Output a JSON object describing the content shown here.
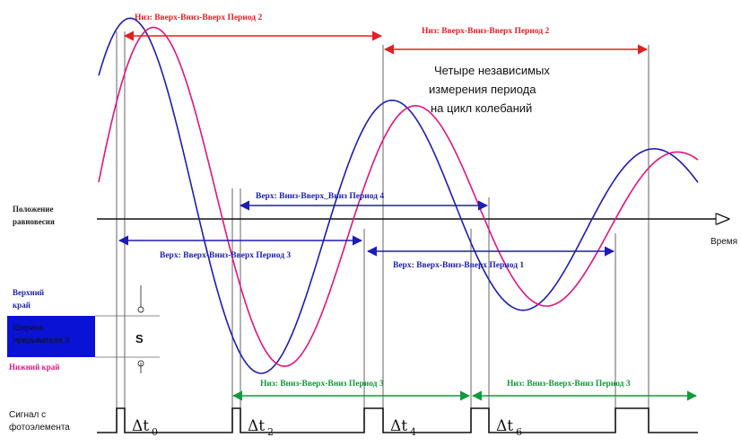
{
  "colors": {
    "red": "#e31e24",
    "blue": "#1d1db4",
    "green": "#129a3a",
    "pink": "#e0157f",
    "sensor": "#0a12d6",
    "axis": "#111111",
    "guide": "#555555"
  },
  "labels": {
    "top_red_left": "Низ: Вверх-Вниз-Вверх Период 2",
    "top_red_right": "Низ: Вверх-Вниз-Вверх Период 2",
    "note": [
      "Четыре независимых",
      "измерения периода",
      "на цикл колебаний"
    ],
    "blue_upper": "Верх: Вниз-Вверх_Вниз Период 4",
    "blue_lower_left": "Верх: Вверх-Вниз-Вверх Период 3",
    "blue_lower_right": "Верх: Вверх-Вниз-Вверх Период 1",
    "green_left": "Низ: Вниз-Вверх-Вниз Период 3",
    "green_right": "Низ: Вниз-Вверх-Вниз Период 3",
    "equilibrium": [
      "Положение",
      "равновесия"
    ],
    "time": "Время",
    "upper_edge": [
      "Верхний",
      "край"
    ],
    "sensor_block": [
      "Ширина",
      "прерывателя S"
    ],
    "lower_edge": "Нижний край",
    "s": "S",
    "signal": [
      "Сигнал с",
      "фотоэлемента"
    ],
    "dt_base": "Δt",
    "dt_subs": [
      "0",
      "2",
      "4",
      "6"
    ]
  }
}
